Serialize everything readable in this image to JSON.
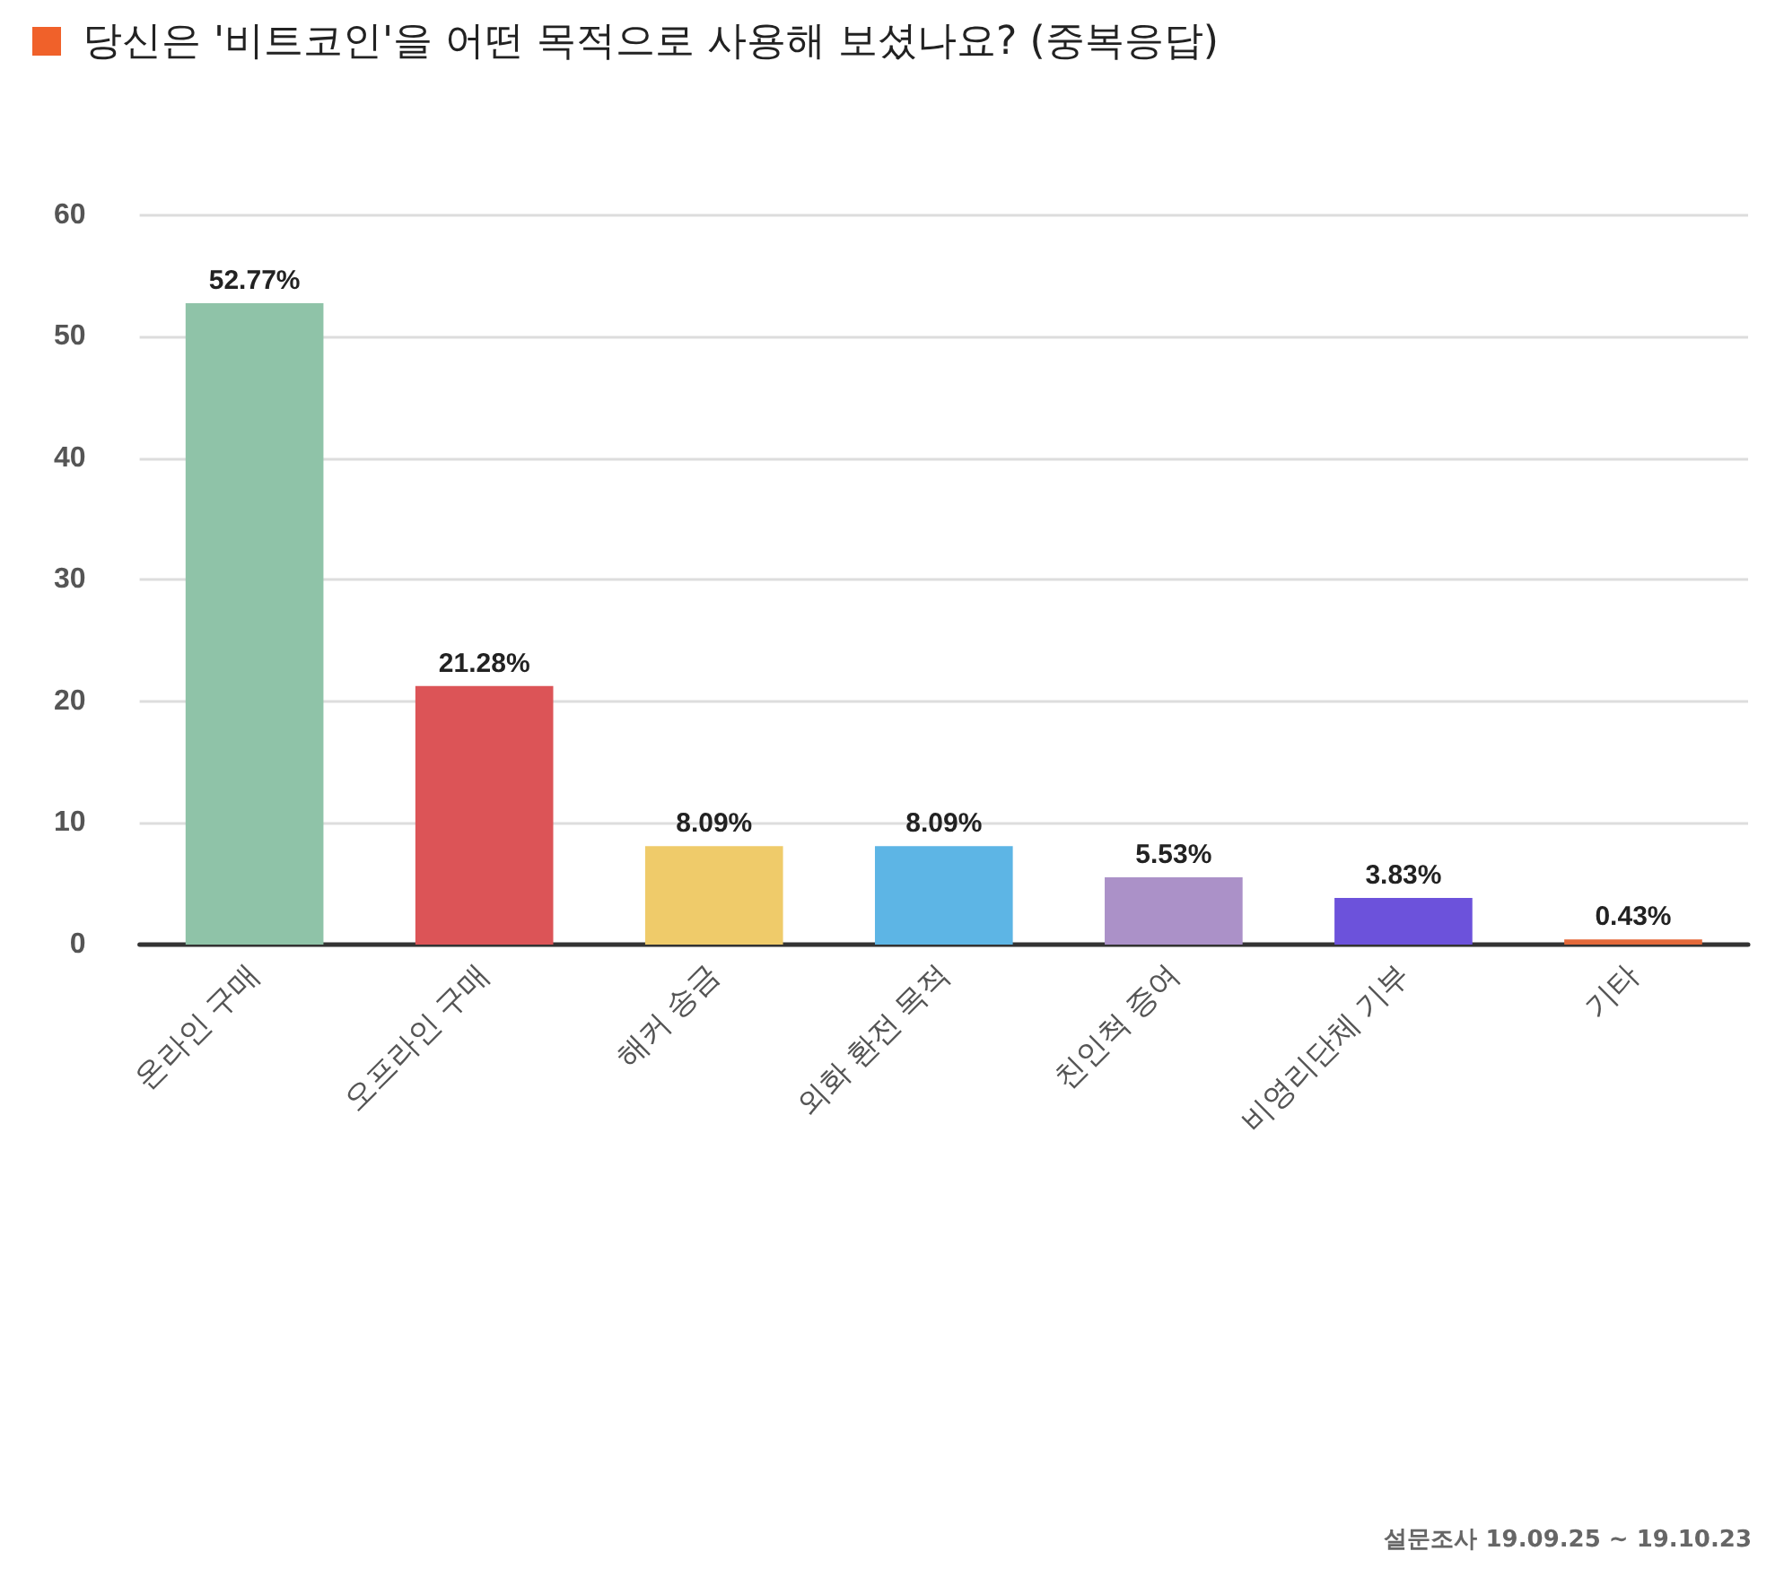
{
  "chart_data": {
    "type": "bar",
    "title": "당신은 '비트코인'을 어떤 목적으로 사용해 보셨나요? (중복응답)",
    "categories": [
      "온라인 구매",
      "오프라인 구매",
      "해커 송금",
      "외화 환전 목적",
      "친인척 증여",
      "비영리단체 기부",
      "기타"
    ],
    "values": [
      52.77,
      21.28,
      8.09,
      8.09,
      5.53,
      3.83,
      0.43
    ],
    "colors": [
      "#8fc3a8",
      "#dc5457",
      "#efcb6a",
      "#5db5e5",
      "#ab91c8",
      "#6c52db",
      "#e4693a"
    ],
    "value_labels": [
      "52.77%",
      "21.28%",
      "8.09%",
      "8.09%",
      "5.53%",
      "3.83%",
      "0.43%"
    ],
    "ylim": [
      0,
      60
    ],
    "yticks": [
      0,
      10,
      20,
      30,
      40,
      50,
      60
    ],
    "grid": "y",
    "annotations": [
      "설문조사 19.09.25 ~ 19.10.23"
    ]
  }
}
